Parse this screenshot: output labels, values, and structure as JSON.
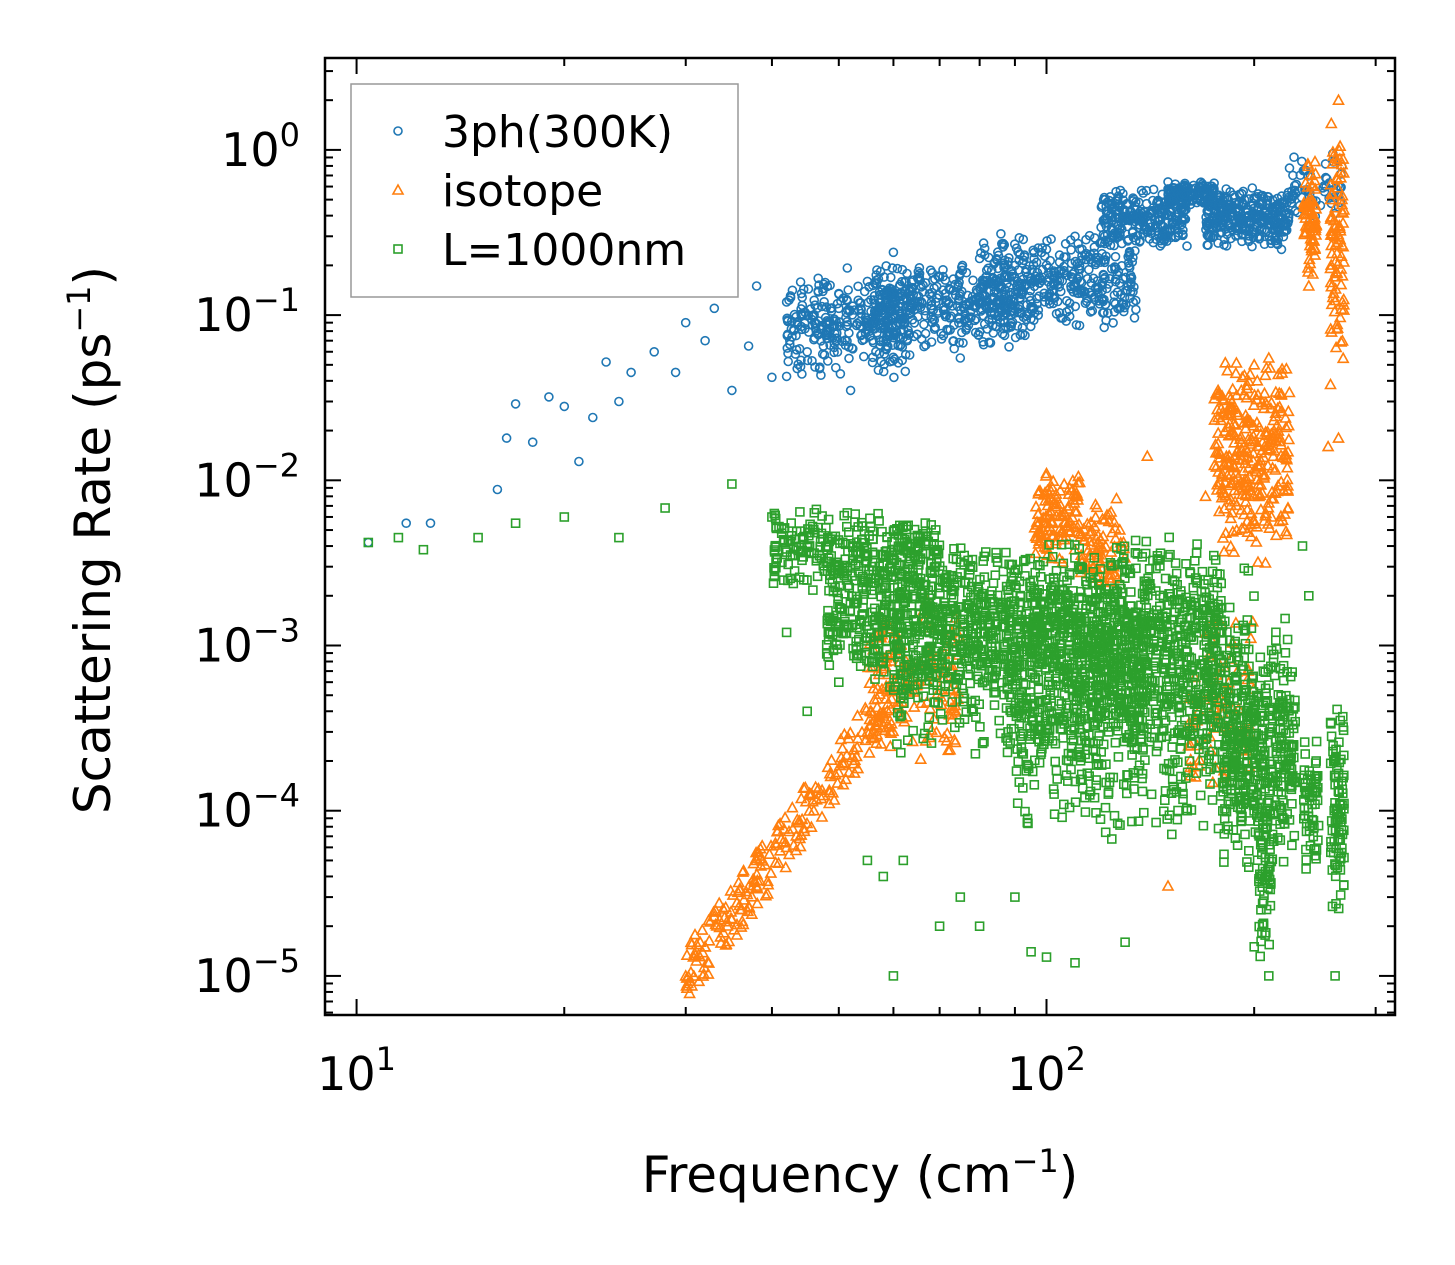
{
  "chart_data": {
    "type": "scatter",
    "xscale": "log",
    "yscale": "log",
    "xlim": [
      9,
      320
    ],
    "ylim": [
      5.8e-06,
      3.6
    ],
    "xlabel": {
      "base": "Frequency (cm",
      "sup": "−1",
      "end": ")"
    },
    "ylabel": {
      "base": "Scattering Rate (ps",
      "sup": "−1",
      "end": ")"
    },
    "xticks": [
      {
        "value": 10,
        "base": "10",
        "exp": "1"
      },
      {
        "value": 100,
        "base": "10",
        "exp": "2"
      }
    ],
    "yticks": [
      {
        "value": 1,
        "base": "10",
        "exp": "0"
      },
      {
        "value": 0.1,
        "base": "10",
        "exp": "−1"
      },
      {
        "value": 0.01,
        "base": "10",
        "exp": "−2"
      },
      {
        "value": 0.001,
        "base": "10",
        "exp": "−3"
      },
      {
        "value": 0.0001,
        "base": "10",
        "exp": "−4"
      },
      {
        "value": 1e-05,
        "base": "10",
        "exp": "−5"
      }
    ],
    "legend": {
      "position": "top-left"
    },
    "series": [
      {
        "name": "3ph(300K)",
        "marker": "circle",
        "color": "#1f77b4",
        "points": [
          [
            10.4,
            0.0042
          ],
          [
            11.8,
            0.0055
          ],
          [
            12.8,
            0.0055
          ],
          [
            16,
            0.0088
          ],
          [
            16.5,
            0.018
          ],
          [
            17,
            0.029
          ],
          [
            18,
            0.017
          ],
          [
            19,
            0.032
          ],
          [
            20,
            0.028
          ],
          [
            21,
            0.013
          ],
          [
            22,
            0.024
          ],
          [
            23,
            0.052
          ],
          [
            24,
            0.03
          ],
          [
            25,
            0.045
          ],
          [
            27,
            0.06
          ],
          [
            29,
            0.045
          ],
          [
            30,
            0.09
          ],
          [
            32,
            0.07
          ],
          [
            33,
            0.11
          ],
          [
            35,
            0.035
          ],
          [
            37,
            0.065
          ],
          [
            38,
            0.15
          ],
          [
            40,
            0.042
          ],
          [
            42,
            0.12
          ],
          [
            45,
            0.06
          ],
          [
            48,
            0.09
          ],
          [
            50,
            0.11
          ],
          [
            52,
            0.035
          ],
          [
            55,
            0.16
          ],
          [
            58,
            0.07
          ],
          [
            60,
            0.24
          ],
          [
            65,
            0.12
          ],
          [
            70,
            0.17
          ],
          [
            75,
            0.055
          ],
          [
            80,
            0.22
          ],
          [
            90,
            0.2
          ],
          [
            100,
            0.25
          ],
          [
            110,
            0.3
          ],
          [
            120,
            0.34
          ],
          [
            130,
            0.42
          ],
          [
            150,
            0.64
          ],
          [
            160,
            0.6
          ],
          [
            180,
            0.5
          ],
          [
            200,
            0.33
          ],
          [
            220,
            0.4
          ],
          [
            240,
            0.35
          ],
          [
            260,
            0.95
          ]
        ],
        "clusters": [
          {
            "x": [
              42,
              64
            ],
            "y": [
              0.04,
              0.2
            ],
            "n": 320
          },
          {
            "x": [
              56,
              95
            ],
            "y": [
              0.06,
              0.22
            ],
            "n": 380
          },
          {
            "x": [
              80,
              135
            ],
            "y": [
              0.08,
              0.32
            ],
            "n": 360
          },
          {
            "x": [
              120,
              160
            ],
            "y": [
              0.25,
              0.6
            ],
            "n": 260
          },
          {
            "x": [
              150,
              175
            ],
            "y": [
              0.45,
              0.66
            ],
            "n": 120
          },
          {
            "x": [
              170,
              225
            ],
            "y": [
              0.24,
              0.62
            ],
            "n": 320
          },
          {
            "x": [
              225,
              268
            ],
            "y": [
              0.35,
              0.95
            ],
            "n": 60
          }
        ]
      },
      {
        "name": "isotope",
        "marker": "triangle",
        "color": "#ff7f0e",
        "points": [
          [
            30,
            1e-05
          ],
          [
            32,
            1.5e-05
          ],
          [
            35,
            2.2e-05
          ],
          [
            38,
            3.5e-05
          ],
          [
            42,
            6e-05
          ],
          [
            46,
            0.0001
          ],
          [
            50,
            0.00017
          ],
          [
            55,
            0.0003
          ],
          [
            60,
            0.00055
          ],
          [
            65,
            0.00075
          ],
          [
            100,
            0.011
          ],
          [
            108,
            0.009
          ],
          [
            140,
            0.014
          ],
          [
            150,
            3.5e-05
          ],
          [
            170,
            0.008
          ],
          [
            200,
            0.05
          ],
          [
            210,
            0.055
          ],
          [
            240,
            0.15
          ],
          [
            245,
            0.85
          ],
          [
            258,
            0.5
          ],
          [
            265,
            2.0
          ],
          [
            265,
            0.018
          ],
          [
            256,
            0.016
          ],
          [
            258,
            0.038
          ]
        ],
        "clusters": [
          {
            "x": [
              30,
              60
            ],
            "y": [
              1e-05,
              0.0005
            ],
            "n": 240,
            "diag": true
          },
          {
            "x": [
              55,
              75
            ],
            "y": [
              0.0002,
              0.002
            ],
            "n": 140
          },
          {
            "x": [
              96,
              112
            ],
            "y": [
              0.003,
              0.012
            ],
            "n": 120
          },
          {
            "x": [
              112,
              130
            ],
            "y": [
              0.002,
              0.008
            ],
            "n": 80
          },
          {
            "x": [
              175,
              225
            ],
            "y": [
              0.003,
              0.06
            ],
            "n": 320
          },
          {
            "x": [
              236,
              246
            ],
            "y": [
              0.15,
              0.95
            ],
            "n": 70
          },
          {
            "x": [
              258,
              270
            ],
            "y": [
              0.05,
              1.5
            ],
            "n": 90
          },
          {
            "x": [
              160,
              200
            ],
            "y": [
              0.0001,
              0.002
            ],
            "n": 80
          }
        ]
      },
      {
        "name": "L=1000nm",
        "marker": "square",
        "color": "#2ca02c",
        "points": [
          [
            10.4,
            0.0042
          ],
          [
            11.5,
            0.0045
          ],
          [
            12.5,
            0.0038
          ],
          [
            15,
            0.0045
          ],
          [
            17,
            0.0055
          ],
          [
            20,
            0.006
          ],
          [
            24,
            0.0045
          ],
          [
            28,
            0.0068
          ],
          [
            35,
            0.0095
          ],
          [
            40,
            0.006
          ],
          [
            42,
            0.0012
          ],
          [
            45,
            0.0004
          ],
          [
            50,
            0.0006
          ],
          [
            55,
            5e-05
          ],
          [
            58,
            4e-05
          ],
          [
            60,
            1e-05
          ],
          [
            62,
            5e-05
          ],
          [
            70,
            2e-05
          ],
          [
            75,
            3e-05
          ],
          [
            80,
            2e-05
          ],
          [
            90,
            3e-05
          ],
          [
            95,
            1.4e-05
          ],
          [
            100,
            1.3e-05
          ],
          [
            110,
            1.2e-05
          ],
          [
            130,
            1.6e-05
          ],
          [
            160,
            0.0001
          ],
          [
            200,
            1.5e-05
          ],
          [
            210,
            1e-05
          ],
          [
            235,
            0.004
          ],
          [
            240,
            0.002
          ],
          [
            246,
            0.0002
          ],
          [
            262,
            1e-05
          ]
        ],
        "clusters": [
          {
            "x": [
              40,
              70
            ],
            "y": [
              0.002,
              0.007
            ],
            "n": 260
          },
          {
            "x": [
              48,
              110
            ],
            "y": [
              0.0005,
              0.005
            ],
            "n": 700
          },
          {
            "x": [
              60,
              140
            ],
            "y": [
              0.0002,
              0.003
            ],
            "n": 600
          },
          {
            "x": [
              90,
              200
            ],
            "y": [
              6e-05,
              0.003
            ],
            "n": 700
          },
          {
            "x": [
              110,
              180
            ],
            "y": [
              0.0003,
              0.005
            ],
            "n": 500
          },
          {
            "x": [
              180,
              230
            ],
            "y": [
              4e-05,
              0.0015
            ],
            "n": 400
          },
          {
            "x": [
              203,
              212
            ],
            "y": [
              1e-05,
              0.00015
            ],
            "n": 60
          },
          {
            "x": [
              236,
              248
            ],
            "y": [
              4e-05,
              0.0003
            ],
            "n": 60
          },
          {
            "x": [
              258,
              270
            ],
            "y": [
              2e-05,
              0.0005
            ],
            "n": 90
          }
        ]
      }
    ]
  }
}
